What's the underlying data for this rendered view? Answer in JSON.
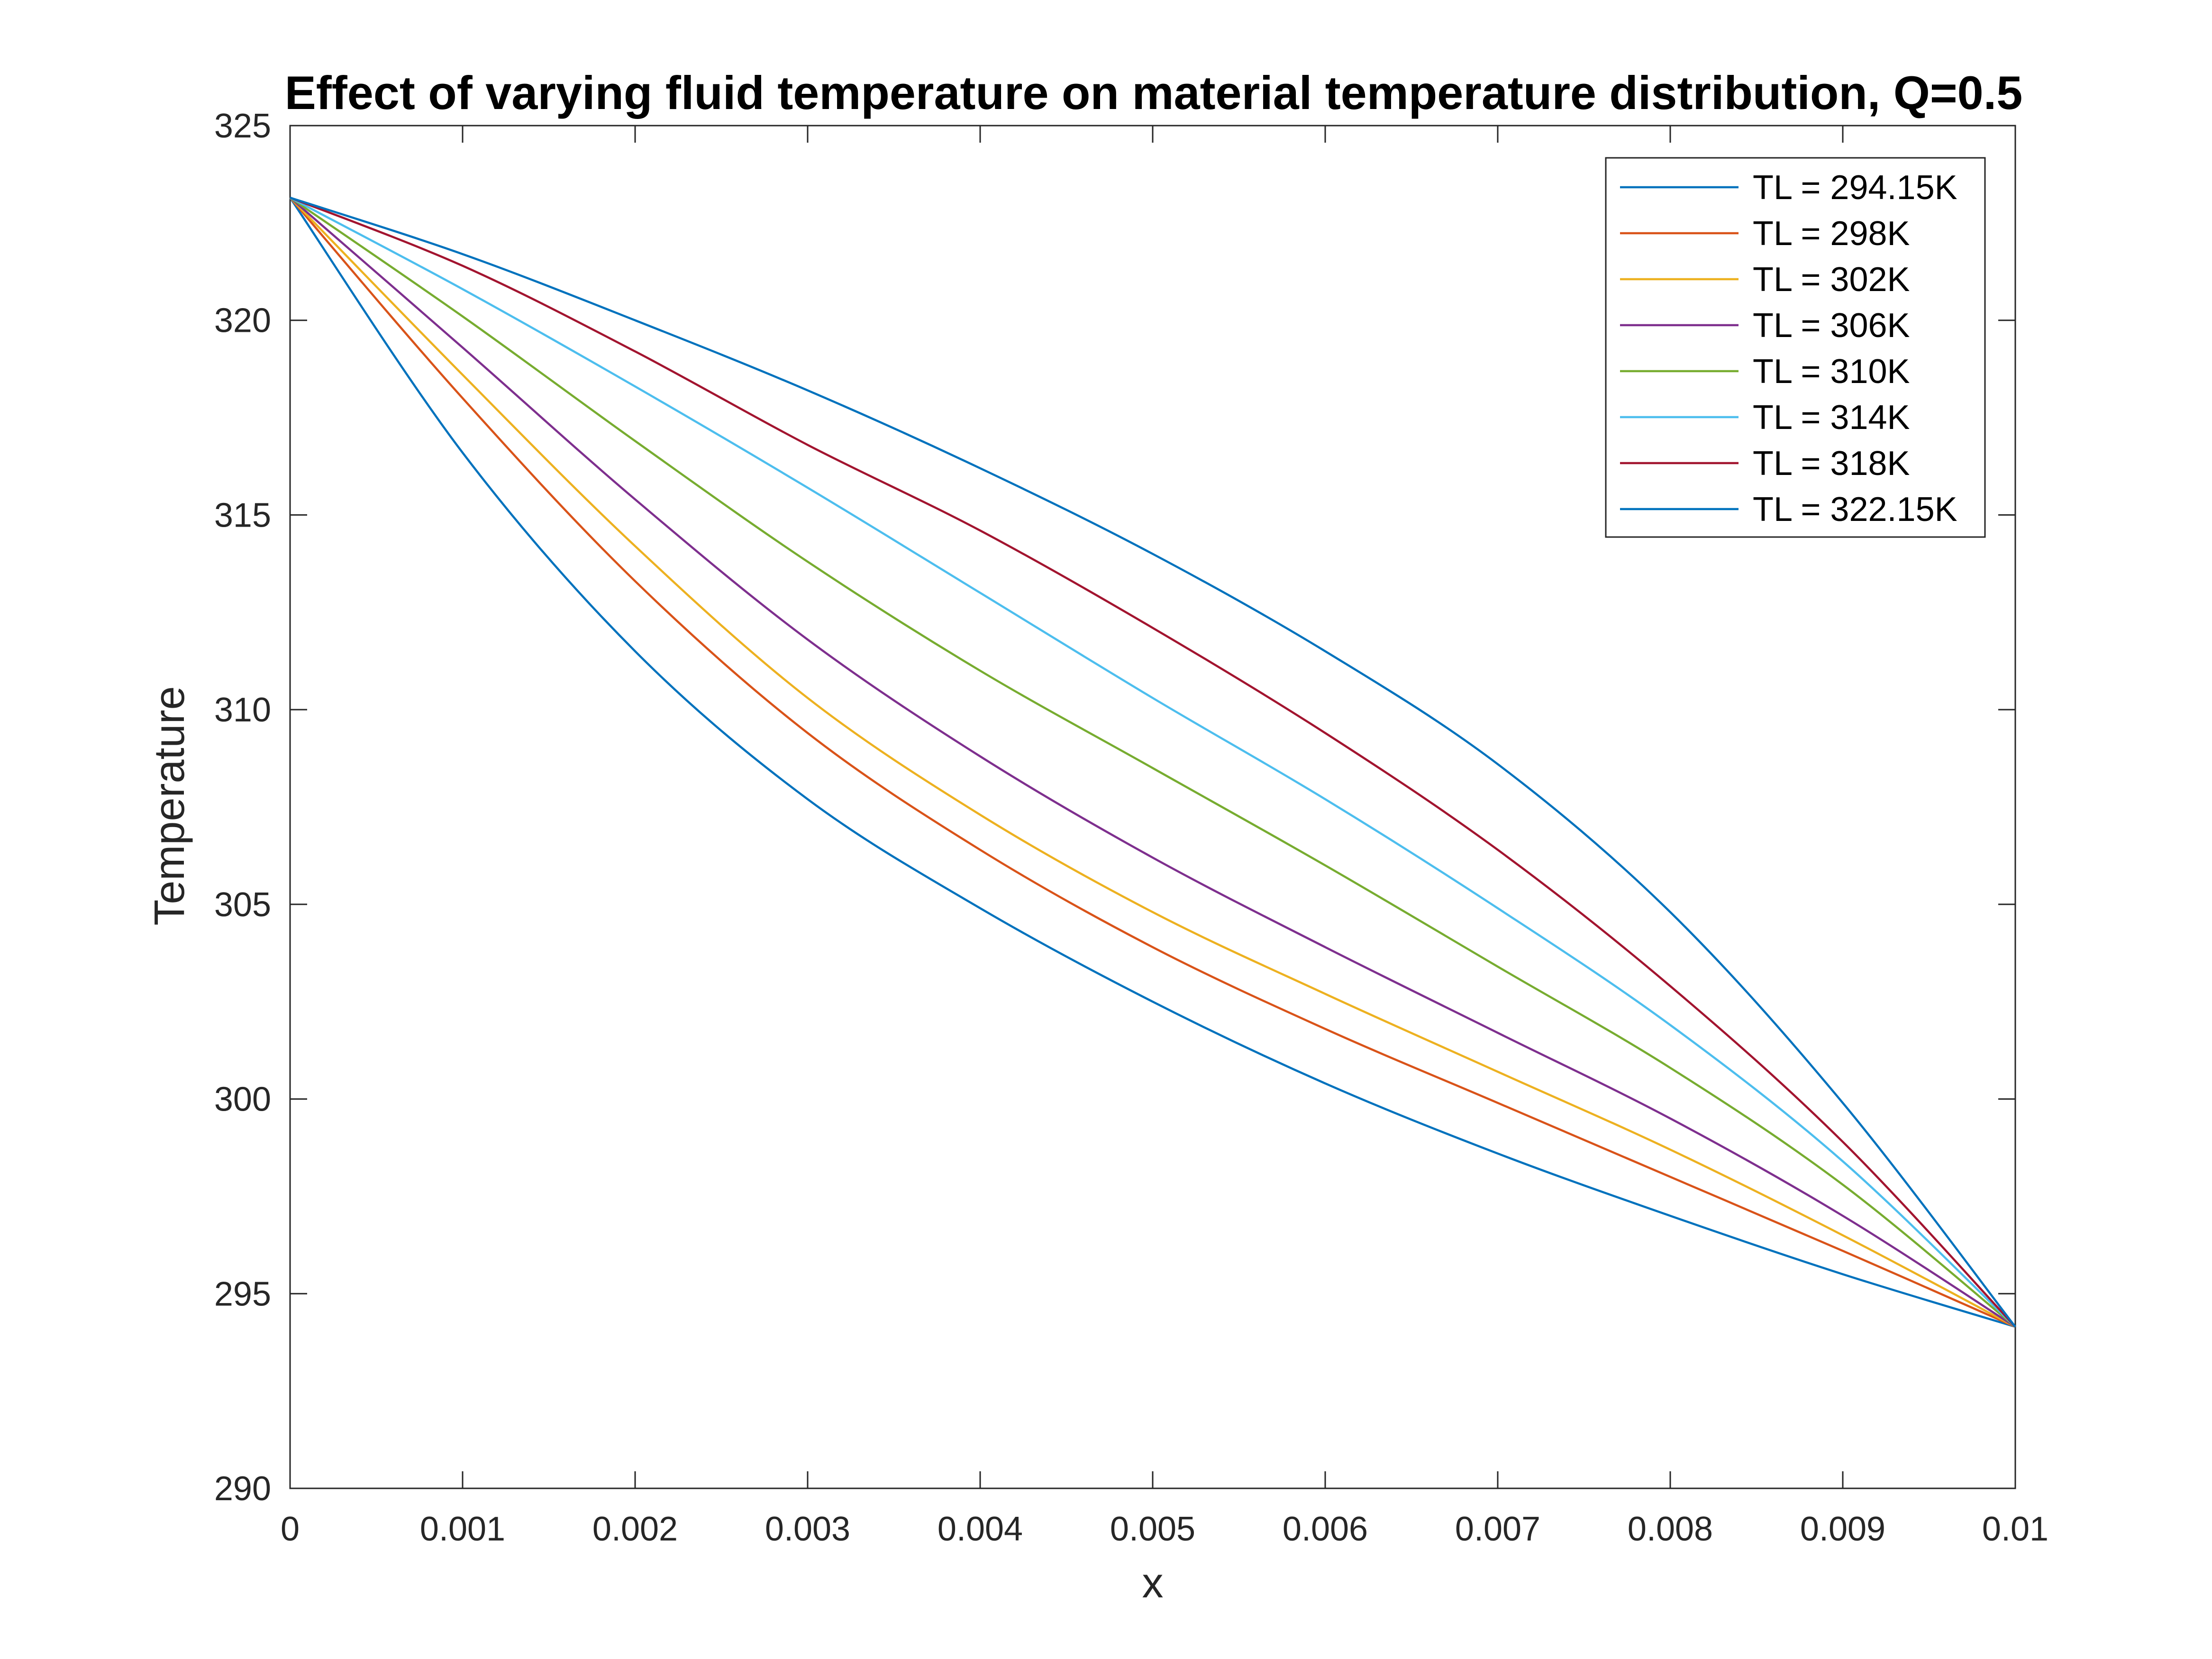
{
  "chart_data": {
    "type": "line",
    "title": "Effect of varying fluid temperature on material temperature distribution, Q=0.5",
    "xlabel": "x",
    "ylabel": "Temperature",
    "xlim": [
      0,
      0.01
    ],
    "ylim": [
      290,
      325
    ],
    "grid": false,
    "legend_position": "top-right",
    "x_ticks": [
      0,
      0.001,
      0.002,
      0.003,
      0.004,
      0.005,
      0.006,
      0.007,
      0.008,
      0.009,
      0.01
    ],
    "x_tick_labels": [
      "0",
      "0.001",
      "0.002",
      "0.003",
      "0.004",
      "0.005",
      "0.006",
      "0.007",
      "0.008",
      "0.009",
      "0.01"
    ],
    "y_ticks": [
      290,
      295,
      300,
      305,
      310,
      315,
      320,
      325
    ],
    "y_tick_labels": [
      "290",
      "295",
      "300",
      "305",
      "310",
      "315",
      "320",
      "325"
    ],
    "x": [
      0,
      0.001,
      0.002,
      0.003,
      0.004,
      0.005,
      0.006,
      0.007,
      0.008,
      0.009,
      0.01
    ],
    "series": [
      {
        "name": "TL = 294.15K",
        "color": "#0072BD",
        "values": [
          323.15,
          316.6,
          311.5,
          307.7,
          304.9,
          302.5,
          300.4,
          298.6,
          297.0,
          295.5,
          294.15
        ]
      },
      {
        "name": "TL = 298K",
        "color": "#D95319",
        "values": [
          323.15,
          318.0,
          313.3,
          309.4,
          306.4,
          303.9,
          301.8,
          299.9,
          298.0,
          296.1,
          294.15
        ]
      },
      {
        "name": "TL = 302K",
        "color": "#EDB120",
        "values": [
          323.15,
          318.6,
          314.2,
          310.3,
          307.3,
          304.8,
          302.7,
          300.7,
          298.7,
          296.5,
          294.15
        ]
      },
      {
        "name": "TL = 306K",
        "color": "#7E2F8E",
        "values": [
          323.15,
          319.3,
          315.4,
          311.8,
          308.8,
          306.2,
          303.9,
          301.7,
          299.5,
          297.0,
          294.15
        ]
      },
      {
        "name": "TL = 310K",
        "color": "#77AC30",
        "values": [
          323.15,
          320.1,
          316.9,
          313.8,
          311.0,
          308.5,
          306.0,
          303.4,
          300.8,
          297.8,
          294.15
        ]
      },
      {
        "name": "TL = 314K",
        "color": "#4DBEEE",
        "values": [
          323.15,
          320.8,
          318.3,
          315.7,
          313.0,
          310.3,
          307.7,
          304.9,
          301.9,
          298.4,
          294.15
        ]
      },
      {
        "name": "TL = 318K",
        "color": "#A2142F",
        "values": [
          323.15,
          321.4,
          319.2,
          316.8,
          314.6,
          312.1,
          309.4,
          306.4,
          302.9,
          298.9,
          294.15
        ]
      },
      {
        "name": "TL = 322.15K",
        "color": "#0072BD",
        "values": [
          323.15,
          321.7,
          320.0,
          318.2,
          316.2,
          314.0,
          311.5,
          308.6,
          304.8,
          299.9,
          294.15
        ]
      }
    ]
  }
}
